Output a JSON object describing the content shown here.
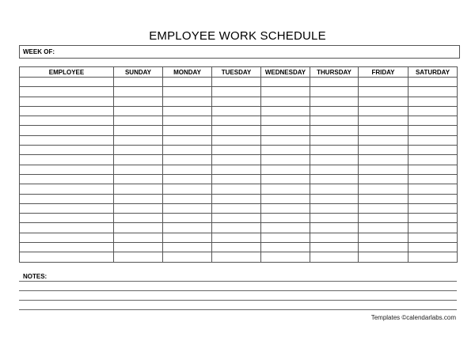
{
  "title": "EMPLOYEE WORK SCHEDULE",
  "week_of_label": "WEEK OF:",
  "table": {
    "columns": [
      "EMPLOYEE",
      "SUNDAY",
      "MONDAY",
      "TUESDAY",
      "WEDNESDAY",
      "THURSDAY",
      "FRIDAY",
      "SATURDAY"
    ],
    "empty_rows": 19
  },
  "notes_label": "NOTES:",
  "footer": "Templates ©calendarlabs.com"
}
